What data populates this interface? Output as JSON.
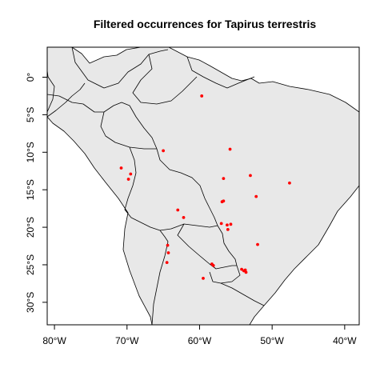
{
  "chart_data": {
    "type": "scatter",
    "title": "Filtered occurrences for Tapirus terrestris",
    "xlabel": "",
    "ylabel": "",
    "xlim": [
      -81,
      -38
    ],
    "ylim": [
      -33,
      4
    ],
    "x_ticks": [
      {
        "value": -80,
        "label": "80°W"
      },
      {
        "value": -70,
        "label": "70°W"
      },
      {
        "value": -60,
        "label": "60°W"
      },
      {
        "value": -50,
        "label": "50°W"
      },
      {
        "value": -40,
        "label": "40°W"
      }
    ],
    "y_ticks": [
      {
        "value": 0,
        "label": "0°"
      },
      {
        "value": -5,
        "label": "5°S"
      },
      {
        "value": -10,
        "label": "10°S"
      },
      {
        "value": -15,
        "label": "15°S"
      },
      {
        "value": -20,
        "label": "20°S"
      },
      {
        "value": -25,
        "label": "25°S"
      },
      {
        "value": -30,
        "label": "30°S"
      }
    ],
    "point_color": "#ff0000",
    "land_color": "#e8e8e8",
    "points": [
      {
        "lon": -59.7,
        "lat": -2.5
      },
      {
        "lon": -65.0,
        "lat": -9.8
      },
      {
        "lon": -55.8,
        "lat": -9.6
      },
      {
        "lon": -70.8,
        "lat": -12.1
      },
      {
        "lon": -69.5,
        "lat": -12.9
      },
      {
        "lon": -69.8,
        "lat": -13.6
      },
      {
        "lon": -56.7,
        "lat": -13.5
      },
      {
        "lon": -53.0,
        "lat": -13.1
      },
      {
        "lon": -47.6,
        "lat": -14.1
      },
      {
        "lon": -52.2,
        "lat": -15.9
      },
      {
        "lon": -56.9,
        "lat": -16.6
      },
      {
        "lon": -56.7,
        "lat": -16.5
      },
      {
        "lon": -63.0,
        "lat": -17.7
      },
      {
        "lon": -62.2,
        "lat": -18.7
      },
      {
        "lon": -57.0,
        "lat": -19.5
      },
      {
        "lon": -56.2,
        "lat": -19.7
      },
      {
        "lon": -55.7,
        "lat": -19.6
      },
      {
        "lon": -56.1,
        "lat": -20.3
      },
      {
        "lon": -52.0,
        "lat": -22.3
      },
      {
        "lon": -64.4,
        "lat": -22.4
      },
      {
        "lon": -64.3,
        "lat": -23.4
      },
      {
        "lon": -64.5,
        "lat": -24.7
      },
      {
        "lon": -58.3,
        "lat": -24.9
      },
      {
        "lon": -58.1,
        "lat": -25.1
      },
      {
        "lon": -54.2,
        "lat": -25.6
      },
      {
        "lon": -53.9,
        "lat": -25.8
      },
      {
        "lon": -53.7,
        "lat": -25.7
      },
      {
        "lon": -53.6,
        "lat": -26.0
      },
      {
        "lon": -59.5,
        "lat": -26.8
      }
    ]
  }
}
